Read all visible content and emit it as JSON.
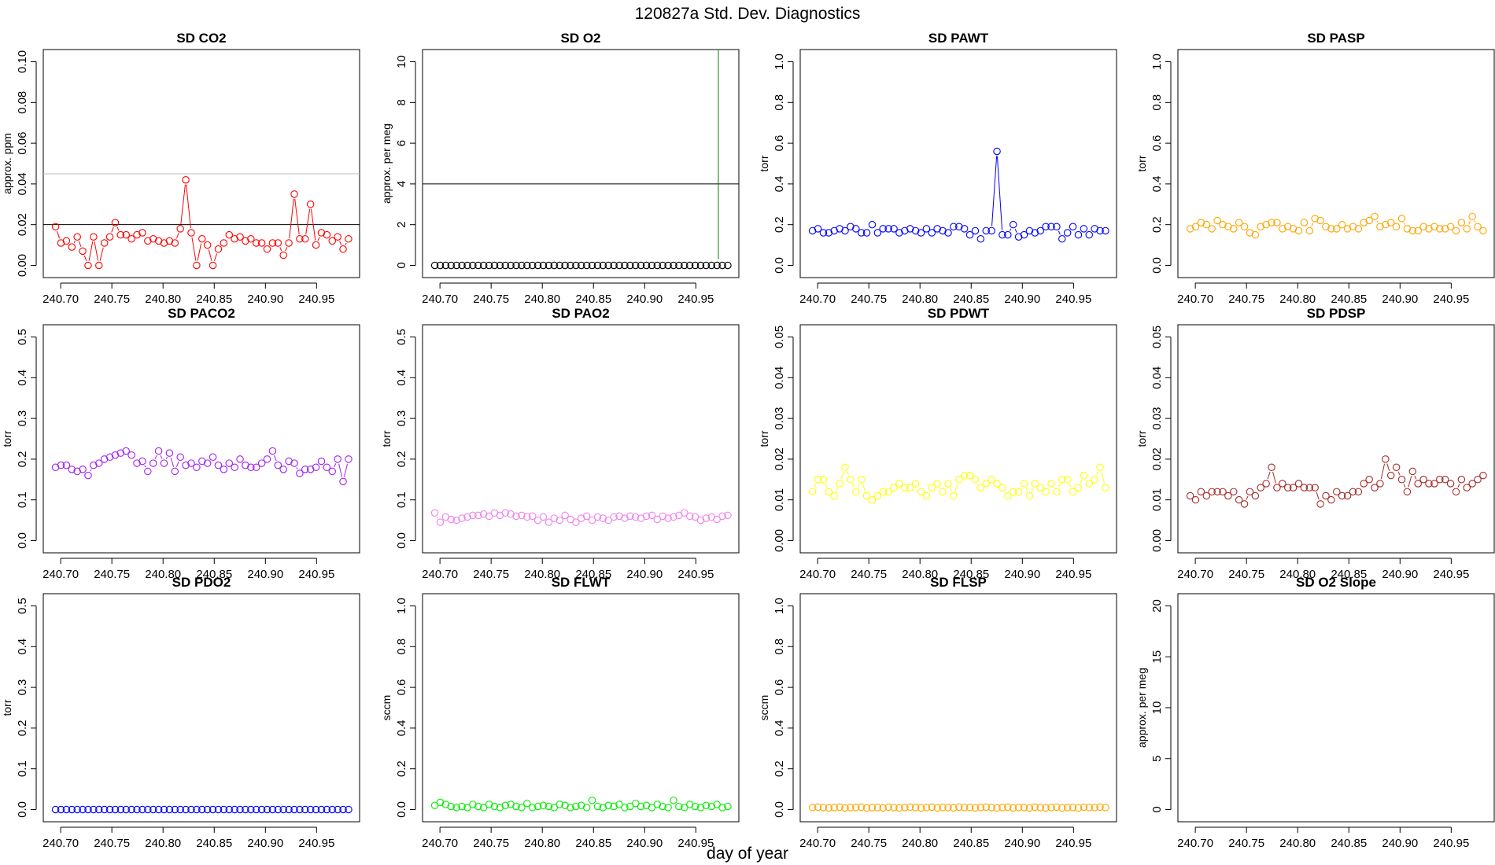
{
  "title": "120827a   Std. Dev. Diagnostics",
  "xlabel": "day of year",
  "x_ticks": [
    "240.70",
    "240.75",
    "240.80",
    "240.85",
    "240.90",
    "240.95"
  ],
  "x_tick_values": [
    240.7,
    240.75,
    240.8,
    240.85,
    240.9,
    240.95
  ],
  "chart_data": [
    {
      "type": "line",
      "title": "SD CO2",
      "ylabel": "approx. ppm",
      "color": "#ff0000",
      "xlim": [
        240.683,
        240.992
      ],
      "ylim": [
        -0.006,
        0.106
      ],
      "yticks": [
        "0.00",
        "0.02",
        "0.04",
        "0.06",
        "0.08",
        "0.10"
      ],
      "ytick_values": [
        0,
        0.02,
        0.04,
        0.06,
        0.08,
        0.1
      ],
      "hlines": [
        {
          "y": 0.02,
          "color": "#000000"
        },
        {
          "y": 0.045,
          "color": "#bbbbbb"
        }
      ],
      "x0": 240.695,
      "dx": 0.0053,
      "values": [
        0.019,
        0.011,
        0.012,
        0.009,
        0.014,
        0.007,
        0.0,
        0.014,
        0.0,
        0.011,
        0.014,
        0.021,
        0.015,
        0.015,
        0.013,
        0.015,
        0.016,
        0.012,
        0.013,
        0.012,
        0.011,
        0.012,
        0.011,
        0.018,
        0.042,
        0.016,
        0.0,
        0.013,
        0.01,
        0.0,
        0.008,
        0.011,
        0.015,
        0.013,
        0.014,
        0.012,
        0.013,
        0.011,
        0.011,
        0.008,
        0.011,
        0.011,
        0.005,
        0.011,
        0.035,
        0.013,
        0.013,
        0.03,
        0.01,
        0.016,
        0.015,
        0.012,
        0.014,
        0.008,
        0.013
      ]
    },
    {
      "type": "line",
      "title": "SD O2",
      "ylabel": "approx. per meg",
      "color": "#000000",
      "xlim": [
        240.683,
        240.992
      ],
      "ylim": [
        -0.6,
        10.6
      ],
      "yticks": [
        "0",
        "2",
        "4",
        "6",
        "8",
        "10"
      ],
      "ytick_values": [
        0,
        2,
        4,
        6,
        8,
        10
      ],
      "hlines": [
        {
          "y": 4,
          "color": "#000000"
        }
      ],
      "vlines": [
        {
          "x": 240.972,
          "from": 0.3,
          "to": 10.6,
          "color": "#008000"
        }
      ],
      "x0": 240.695,
      "dx": 0.0053,
      "values": [
        0,
        0,
        0,
        0,
        0,
        0,
        0,
        0,
        0,
        0,
        0,
        0,
        0,
        0,
        0,
        0,
        0,
        0,
        0,
        0,
        0,
        0,
        0,
        0,
        0,
        0,
        0,
        0,
        0,
        0,
        0,
        0,
        0,
        0,
        0,
        0,
        0,
        0,
        0,
        0,
        0,
        0,
        0,
        0,
        0,
        0,
        0,
        0,
        0,
        0,
        0,
        0,
        0,
        0,
        0
      ]
    },
    {
      "type": "line",
      "title": "SD PAWT",
      "ylabel": "torr",
      "color": "#0000ff",
      "xlim": [
        240.683,
        240.992
      ],
      "ylim": [
        -0.06,
        1.06
      ],
      "yticks": [
        "0.0",
        "0.2",
        "0.4",
        "0.6",
        "0.8",
        "1.0"
      ],
      "ytick_values": [
        0,
        0.2,
        0.4,
        0.6,
        0.8,
        1.0
      ],
      "x0": 240.695,
      "dx": 0.0053,
      "values": [
        0.17,
        0.18,
        0.16,
        0.16,
        0.17,
        0.18,
        0.17,
        0.19,
        0.18,
        0.16,
        0.16,
        0.2,
        0.16,
        0.18,
        0.18,
        0.18,
        0.16,
        0.17,
        0.18,
        0.17,
        0.16,
        0.18,
        0.16,
        0.18,
        0.17,
        0.16,
        0.19,
        0.19,
        0.18,
        0.15,
        0.17,
        0.13,
        0.17,
        0.17,
        0.56,
        0.15,
        0.15,
        0.2,
        0.14,
        0.15,
        0.17,
        0.16,
        0.17,
        0.19,
        0.19,
        0.19,
        0.13,
        0.16,
        0.19,
        0.15,
        0.18,
        0.15,
        0.18,
        0.17,
        0.17
      ]
    },
    {
      "type": "line",
      "title": "SD PASP",
      "ylabel": "torr",
      "color": "#ffa500",
      "xlim": [
        240.683,
        240.992
      ],
      "ylim": [
        -0.06,
        1.06
      ],
      "yticks": [
        "0.0",
        "0.2",
        "0.4",
        "0.6",
        "0.8",
        "1.0"
      ],
      "ytick_values": [
        0,
        0.2,
        0.4,
        0.6,
        0.8,
        1.0
      ],
      "x0": 240.695,
      "dx": 0.0053,
      "values": [
        0.18,
        0.19,
        0.21,
        0.2,
        0.18,
        0.22,
        0.2,
        0.19,
        0.18,
        0.21,
        0.19,
        0.16,
        0.15,
        0.19,
        0.2,
        0.21,
        0.21,
        0.18,
        0.19,
        0.18,
        0.17,
        0.21,
        0.17,
        0.23,
        0.22,
        0.19,
        0.18,
        0.18,
        0.2,
        0.18,
        0.19,
        0.18,
        0.21,
        0.22,
        0.24,
        0.19,
        0.2,
        0.21,
        0.19,
        0.23,
        0.18,
        0.17,
        0.17,
        0.19,
        0.18,
        0.19,
        0.18,
        0.18,
        0.19,
        0.17,
        0.21,
        0.18,
        0.24,
        0.19,
        0.17
      ]
    },
    {
      "type": "line",
      "title": "SD PACO2",
      "ylabel": "torr",
      "color": "#a020f0",
      "xlim": [
        240.683,
        240.992
      ],
      "ylim": [
        -0.03,
        0.53
      ],
      "yticks": [
        "0.0",
        "0.1",
        "0.2",
        "0.3",
        "0.4",
        "0.5"
      ],
      "ytick_values": [
        0,
        0.1,
        0.2,
        0.3,
        0.4,
        0.5
      ],
      "x0": 240.695,
      "dx": 0.0053,
      "values": [
        0.18,
        0.185,
        0.185,
        0.175,
        0.17,
        0.175,
        0.16,
        0.185,
        0.19,
        0.2,
        0.205,
        0.21,
        0.215,
        0.22,
        0.21,
        0.19,
        0.195,
        0.17,
        0.19,
        0.22,
        0.19,
        0.215,
        0.17,
        0.205,
        0.185,
        0.19,
        0.18,
        0.195,
        0.19,
        0.205,
        0.185,
        0.175,
        0.19,
        0.18,
        0.2,
        0.185,
        0.18,
        0.18,
        0.19,
        0.2,
        0.22,
        0.185,
        0.175,
        0.195,
        0.19,
        0.165,
        0.175,
        0.175,
        0.18,
        0.195,
        0.18,
        0.17,
        0.2,
        0.145,
        0.2
      ]
    },
    {
      "type": "line",
      "title": "SD PAO2",
      "ylabel": "torr",
      "color": "#ee82ee",
      "xlim": [
        240.683,
        240.992
      ],
      "ylim": [
        -0.03,
        0.53
      ],
      "yticks": [
        "0.0",
        "0.1",
        "0.2",
        "0.3",
        "0.4",
        "0.5"
      ],
      "ytick_values": [
        0,
        0.1,
        0.2,
        0.3,
        0.4,
        0.5
      ],
      "x0": 240.695,
      "dx": 0.0053,
      "values": [
        0.068,
        0.045,
        0.058,
        0.052,
        0.05,
        0.055,
        0.058,
        0.062,
        0.062,
        0.065,
        0.06,
        0.068,
        0.062,
        0.068,
        0.065,
        0.06,
        0.062,
        0.058,
        0.06,
        0.05,
        0.058,
        0.045,
        0.055,
        0.05,
        0.062,
        0.052,
        0.045,
        0.055,
        0.06,
        0.05,
        0.058,
        0.055,
        0.05,
        0.058,
        0.06,
        0.055,
        0.06,
        0.058,
        0.055,
        0.06,
        0.062,
        0.052,
        0.06,
        0.055,
        0.058,
        0.062,
        0.068,
        0.06,
        0.058,
        0.05,
        0.055,
        0.058,
        0.052,
        0.06,
        0.062
      ]
    },
    {
      "type": "line",
      "title": "SD PDWT",
      "ylabel": "torr",
      "color": "#ffff00",
      "xlim": [
        240.683,
        240.992
      ],
      "ylim": [
        -0.003,
        0.053
      ],
      "yticks": [
        "0.00",
        "0.01",
        "0.02",
        "0.03",
        "0.04",
        "0.05"
      ],
      "ytick_values": [
        0,
        0.01,
        0.02,
        0.03,
        0.04,
        0.05
      ],
      "x0": 240.695,
      "dx": 0.0053,
      "values": [
        0.012,
        0.015,
        0.015,
        0.012,
        0.011,
        0.014,
        0.018,
        0.015,
        0.012,
        0.015,
        0.011,
        0.01,
        0.011,
        0.012,
        0.012,
        0.013,
        0.014,
        0.013,
        0.013,
        0.014,
        0.012,
        0.011,
        0.013,
        0.014,
        0.012,
        0.014,
        0.011,
        0.015,
        0.016,
        0.016,
        0.015,
        0.013,
        0.014,
        0.015,
        0.014,
        0.013,
        0.011,
        0.012,
        0.012,
        0.014,
        0.011,
        0.014,
        0.013,
        0.012,
        0.014,
        0.012,
        0.015,
        0.015,
        0.012,
        0.013,
        0.016,
        0.014,
        0.015,
        0.018,
        0.013
      ]
    },
    {
      "type": "line",
      "title": "SD PDSP",
      "ylabel": "torr",
      "color": "#a52a2a",
      "xlim": [
        240.683,
        240.992
      ],
      "ylim": [
        -0.003,
        0.053
      ],
      "yticks": [
        "0.00",
        "0.01",
        "0.02",
        "0.03",
        "0.04",
        "0.05"
      ],
      "ytick_values": [
        0,
        0.01,
        0.02,
        0.03,
        0.04,
        0.05
      ],
      "x0": 240.695,
      "dx": 0.0053,
      "values": [
        0.011,
        0.01,
        0.012,
        0.011,
        0.012,
        0.012,
        0.012,
        0.011,
        0.012,
        0.01,
        0.009,
        0.012,
        0.011,
        0.013,
        0.014,
        0.018,
        0.013,
        0.014,
        0.013,
        0.013,
        0.014,
        0.013,
        0.013,
        0.013,
        0.009,
        0.011,
        0.01,
        0.012,
        0.011,
        0.011,
        0.012,
        0.012,
        0.014,
        0.015,
        0.013,
        0.014,
        0.02,
        0.016,
        0.018,
        0.015,
        0.012,
        0.017,
        0.014,
        0.015,
        0.014,
        0.014,
        0.015,
        0.015,
        0.014,
        0.012,
        0.015,
        0.013,
        0.014,
        0.015,
        0.016
      ]
    },
    {
      "type": "line",
      "title": "SD PDO2",
      "ylabel": "torr",
      "color": "#0000ff",
      "xlim": [
        240.683,
        240.992
      ],
      "ylim": [
        -0.03,
        0.53
      ],
      "yticks": [
        "0.0",
        "0.1",
        "0.2",
        "0.3",
        "0.4",
        "0.5"
      ],
      "ytick_values": [
        0,
        0.1,
        0.2,
        0.3,
        0.4,
        0.5
      ],
      "x0": 240.695,
      "dx": 0.0053,
      "values": [
        0,
        0,
        0,
        0,
        0,
        0,
        0,
        0,
        0,
        0,
        0,
        0,
        0,
        0,
        0,
        0,
        0,
        0,
        0,
        0,
        0,
        0,
        0,
        0,
        0,
        0,
        0,
        0,
        0,
        0,
        0,
        0,
        0,
        0,
        0,
        0,
        0,
        0,
        0,
        0,
        0,
        0,
        0,
        0,
        0,
        0,
        0,
        0,
        0,
        0,
        0,
        0,
        0,
        0,
        0
      ]
    },
    {
      "type": "line",
      "title": "SD FLWT",
      "ylabel": "sccm",
      "color": "#00ee00",
      "xlim": [
        240.683,
        240.992
      ],
      "ylim": [
        -0.06,
        1.06
      ],
      "yticks": [
        "0.0",
        "0.2",
        "0.4",
        "0.6",
        "0.8",
        "1.0"
      ],
      "ytick_values": [
        0,
        0.2,
        0.4,
        0.6,
        0.8,
        1.0
      ],
      "x0": 240.695,
      "dx": 0.0053,
      "values": [
        0.02,
        0.035,
        0.025,
        0.015,
        0.01,
        0.015,
        0.01,
        0.025,
        0.015,
        0.01,
        0.025,
        0.015,
        0.01,
        0.02,
        0.025,
        0.015,
        0.01,
        0.03,
        0.01,
        0.015,
        0.02,
        0.015,
        0.01,
        0.025,
        0.02,
        0.01,
        0.015,
        0.02,
        0.01,
        0.045,
        0.015,
        0.01,
        0.02,
        0.015,
        0.025,
        0.01,
        0.015,
        0.03,
        0.015,
        0.02,
        0.01,
        0.025,
        0.015,
        0.01,
        0.045,
        0.015,
        0.01,
        0.025,
        0.015,
        0.01,
        0.02,
        0.015,
        0.025,
        0.01,
        0.015
      ]
    },
    {
      "type": "line",
      "title": "SD FLSP",
      "ylabel": "sccm",
      "color": "#ffa500",
      "xlim": [
        240.683,
        240.992
      ],
      "ylim": [
        -0.06,
        1.06
      ],
      "yticks": [
        "0.0",
        "0.2",
        "0.4",
        "0.6",
        "0.8",
        "1.0"
      ],
      "ytick_values": [
        0,
        0.2,
        0.4,
        0.6,
        0.8,
        1.0
      ],
      "x0": 240.695,
      "dx": 0.0053,
      "values": [
        0.01,
        0.012,
        0.01,
        0.008,
        0.01,
        0.012,
        0.008,
        0.01,
        0.01,
        0.012,
        0.008,
        0.01,
        0.01,
        0.008,
        0.012,
        0.01,
        0.008,
        0.01,
        0.012,
        0.01,
        0.008,
        0.01,
        0.012,
        0.008,
        0.01,
        0.01,
        0.008,
        0.012,
        0.01,
        0.01,
        0.008,
        0.01,
        0.012,
        0.01,
        0.008,
        0.01,
        0.012,
        0.008,
        0.01,
        0.01,
        0.008,
        0.012,
        0.01,
        0.008,
        0.01,
        0.012,
        0.008,
        0.01,
        0.01,
        0.008,
        0.012,
        0.01,
        0.01,
        0.012,
        0.01
      ]
    },
    {
      "type": "line",
      "title": "SD O2 Slope",
      "ylabel": "approx. per meg",
      "color": "#000000",
      "xlim": [
        240.683,
        240.992
      ],
      "ylim": [
        -1.2,
        21.2
      ],
      "yticks": [
        "0",
        "5",
        "10",
        "15",
        "20"
      ],
      "ytick_values": [
        0,
        5,
        10,
        15,
        20
      ],
      "x0": 240.695,
      "dx": 0.0053,
      "values": []
    }
  ]
}
